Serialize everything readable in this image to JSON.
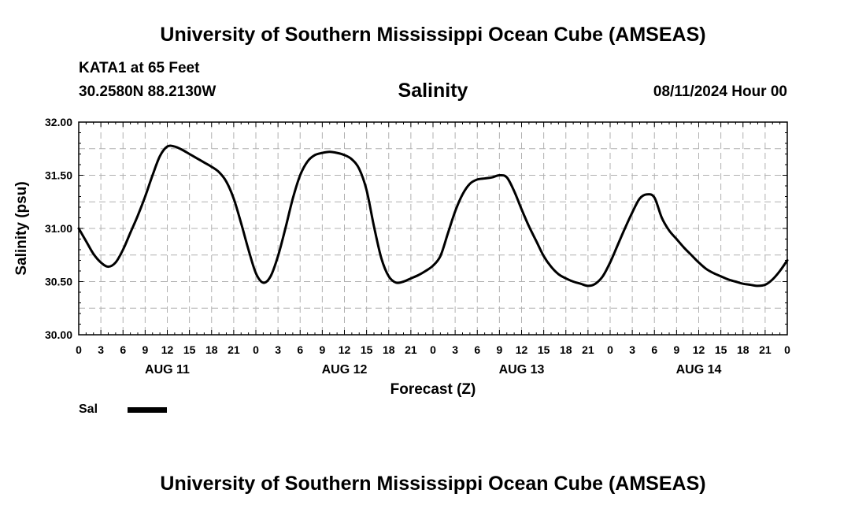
{
  "page": {
    "title_top": "University of Southern Mississippi Ocean Cube (AMSEAS)",
    "title_bottom": "University of Southern Mississippi Ocean Cube (AMSEAS)",
    "station": "KATA1 at 65 Feet",
    "coords": "30.2580N  88.2130W",
    "variable": "Salinity",
    "issued": "08/11/2024 Hour 00"
  },
  "legend": {
    "label": "Sal",
    "color": "#000000"
  },
  "chart_data": {
    "type": "line",
    "title": "Salinity",
    "xlabel": "Forecast (Z)",
    "ylabel": "Salinity (psu)",
    "ylim": [
      30.0,
      32.0
    ],
    "yticks": [
      "30.00",
      "30.50",
      "31.00",
      "31.50",
      "32.00"
    ],
    "xlim_hours": [
      0,
      96
    ],
    "x_tick_labels": [
      "0",
      "3",
      "6",
      "9",
      "12",
      "15",
      "18",
      "21",
      "0",
      "3",
      "6",
      "9",
      "12",
      "15",
      "18",
      "21",
      "0",
      "3",
      "6",
      "9",
      "12",
      "15",
      "18",
      "21",
      "0",
      "3",
      "6",
      "9",
      "12",
      "15",
      "18",
      "21",
      "0"
    ],
    "date_labels": [
      {
        "label": "AUG 11",
        "hour": 12
      },
      {
        "label": "AUG 12",
        "hour": 36
      },
      {
        "label": "AUG 13",
        "hour": 60
      },
      {
        "label": "AUG 14",
        "hour": 84
      }
    ],
    "grid": true,
    "series": [
      {
        "name": "Sal",
        "color": "#000000",
        "hours": [
          0,
          1,
          2,
          3,
          4,
          5,
          6,
          7,
          8,
          9,
          10,
          11,
          12,
          13,
          14,
          15,
          16,
          17,
          18,
          19,
          20,
          21,
          22,
          23,
          24,
          25,
          26,
          27,
          28,
          29,
          30,
          31,
          32,
          33,
          34,
          35,
          36,
          37,
          38,
          39,
          40,
          41,
          42,
          43,
          44,
          45,
          46,
          47,
          48,
          49,
          50,
          51,
          52,
          53,
          54,
          55,
          56,
          57,
          58,
          59,
          60,
          61,
          62,
          63,
          64,
          65,
          66,
          67,
          68,
          69,
          70,
          71,
          72,
          73,
          74,
          75,
          76,
          77,
          78,
          79,
          80,
          81,
          82,
          83,
          84,
          85,
          86,
          87,
          88,
          89,
          90,
          91,
          92,
          93,
          94,
          95,
          96
        ],
        "values": [
          31.0,
          30.88,
          30.76,
          30.68,
          30.64,
          30.68,
          30.8,
          30.96,
          31.12,
          31.3,
          31.5,
          31.68,
          31.77,
          31.77,
          31.74,
          31.7,
          31.66,
          31.62,
          31.58,
          31.53,
          31.44,
          31.28,
          31.05,
          30.8,
          30.58,
          30.49,
          30.55,
          30.74,
          31.0,
          31.28,
          31.5,
          31.63,
          31.69,
          31.71,
          31.72,
          31.71,
          31.69,
          31.65,
          31.56,
          31.36,
          31.02,
          30.72,
          30.55,
          30.49,
          30.5,
          30.53,
          30.56,
          30.6,
          30.65,
          30.74,
          30.95,
          31.16,
          31.32,
          31.42,
          31.46,
          31.47,
          31.48,
          31.5,
          31.48,
          31.35,
          31.18,
          31.02,
          30.88,
          30.74,
          30.64,
          30.57,
          30.53,
          30.5,
          30.48,
          30.46,
          30.48,
          30.55,
          30.68,
          30.84,
          31.0,
          31.15,
          31.28,
          31.32,
          31.29,
          31.1,
          30.98,
          30.9,
          30.82,
          30.75,
          30.68,
          30.62,
          30.58,
          30.55,
          30.52,
          30.5,
          30.48,
          30.47,
          30.46,
          30.47,
          30.52,
          30.6,
          30.7
        ]
      }
    ]
  }
}
